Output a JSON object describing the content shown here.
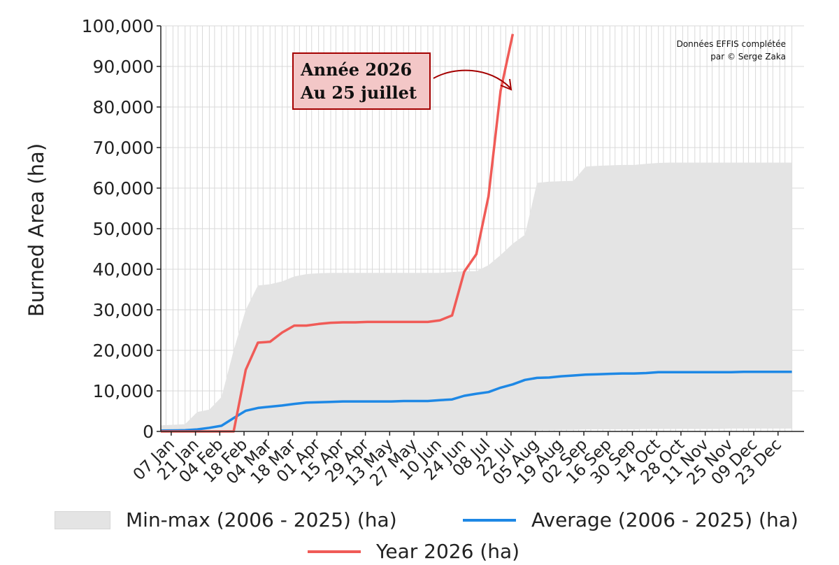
{
  "chart_data": {
    "type": "area",
    "ylabel": "Burned Area (ha)",
    "ylim": [
      0,
      100000
    ],
    "yticks": [
      "0",
      "10,000",
      "20,000",
      "30,000",
      "40,000",
      "50,000",
      "60,000",
      "70,000",
      "80,000",
      "90,000",
      "100,000"
    ],
    "ytick_values": [
      0,
      10000,
      20000,
      30000,
      40000,
      50000,
      60000,
      70000,
      80000,
      90000,
      100000
    ],
    "xticks": [
      "07 Jan",
      "21 Jan",
      "04 Feb",
      "18 Feb",
      "04 Mar",
      "18 Mar",
      "01 Apr",
      "15 Apr",
      "29 Apr",
      "13 May",
      "27 May",
      "10 Jun",
      "24 Jun",
      "08 Jul",
      "22 Jul",
      "05 Aug",
      "19 Aug",
      "02 Sep",
      "16 Sep",
      "30 Sep",
      "14 Oct",
      "28 Oct",
      "11 Nov",
      "25 Nov",
      "09 Dec",
      "23 Dec"
    ],
    "x_day_of_year": [
      1,
      4,
      8,
      11,
      15,
      18,
      22,
      25,
      29,
      32,
      36,
      39,
      43,
      46,
      50,
      53,
      57,
      60,
      64,
      67,
      71,
      74,
      78,
      81,
      85,
      88,
      92,
      95,
      99,
      102,
      106,
      109,
      113,
      116,
      120,
      123,
      127,
      130,
      134,
      137,
      141,
      144,
      148,
      151,
      155,
      158,
      162,
      165,
      169,
      172,
      176,
      179,
      183,
      186,
      190,
      193,
      197,
      200,
      204,
      207,
      211,
      214,
      218,
      221,
      225,
      228,
      232,
      235,
      239,
      242,
      246,
      249,
      253,
      256,
      260,
      263,
      267,
      270,
      274,
      277,
      281,
      284,
      288,
      291,
      295,
      298,
      302,
      305,
      309,
      312,
      316,
      319,
      323,
      326,
      330,
      333,
      337,
      340,
      344,
      347,
      351,
      354,
      358,
      361,
      365
    ],
    "grid": true,
    "legend_placement": "bottom",
    "series": [
      {
        "name": "Min-max (2006 - 2025) (ha)",
        "kind": "band",
        "color": "#e4e4e4",
        "x": [
          1,
          15,
          22,
          29,
          36,
          43,
          50,
          57,
          64,
          71,
          78,
          85,
          92,
          99,
          106,
          113,
          120,
          127,
          134,
          141,
          148,
          155,
          162,
          169,
          176,
          183,
          190,
          197,
          204,
          211,
          218,
          225,
          232,
          239,
          246,
          253,
          260,
          267,
          274,
          281,
          288,
          295,
          302,
          309,
          316,
          323,
          330,
          337,
          344,
          351,
          358,
          365
        ],
        "max": [
          1500,
          1800,
          4800,
          5400,
          8500,
          20000,
          30000,
          36000,
          36300,
          37000,
          38200,
          38800,
          39000,
          39100,
          39100,
          39100,
          39100,
          39100,
          39100,
          39100,
          39100,
          39100,
          39100,
          39300,
          39500,
          39500,
          41000,
          43500,
          46300,
          48500,
          61300,
          61600,
          61700,
          61800,
          65300,
          65500,
          65600,
          65700,
          65700,
          66000,
          66200,
          66300,
          66300,
          66300,
          66300,
          66300,
          66300,
          66300,
          66300,
          66300,
          66300,
          66300
        ],
        "min": [
          0,
          0,
          0,
          0,
          0,
          0,
          0,
          0,
          0,
          0,
          0,
          0,
          0,
          0,
          0,
          0,
          0,
          0,
          0,
          0,
          0,
          0,
          0,
          0,
          0,
          0,
          0,
          0,
          0,
          100,
          300,
          300,
          400,
          400,
          500,
          500,
          500,
          500,
          500,
          600,
          600,
          600,
          600,
          600,
          600,
          600,
          700,
          700,
          700,
          700,
          700,
          700
        ]
      },
      {
        "name": "Average (2006 - 2025) (ha)",
        "kind": "line",
        "color": "#1e88e5",
        "x": [
          1,
          15,
          22,
          29,
          36,
          43,
          50,
          57,
          64,
          71,
          78,
          85,
          92,
          99,
          106,
          113,
          120,
          127,
          134,
          141,
          148,
          155,
          162,
          169,
          176,
          183,
          190,
          197,
          204,
          211,
          218,
          225,
          232,
          239,
          246,
          253,
          260,
          267,
          274,
          281,
          288,
          295,
          302,
          309,
          316,
          323,
          330,
          337,
          344,
          351,
          358,
          365
        ],
        "values": [
          200,
          300,
          500,
          900,
          1400,
          3300,
          5100,
          5800,
          6100,
          6400,
          6800,
          7100,
          7200,
          7300,
          7400,
          7400,
          7400,
          7400,
          7400,
          7500,
          7500,
          7500,
          7700,
          7900,
          8800,
          9300,
          9700,
          10800,
          11600,
          12700,
          13200,
          13300,
          13600,
          13800,
          14000,
          14100,
          14200,
          14300,
          14300,
          14400,
          14600,
          14600,
          14600,
          14600,
          14600,
          14600,
          14600,
          14700,
          14700,
          14700,
          14700,
          14700
        ]
      },
      {
        "name": "Year 2026 (ha)",
        "kind": "line",
        "color": "#f05b57",
        "x": [
          1,
          15,
          22,
          29,
          36,
          43,
          50,
          57,
          64,
          71,
          78,
          85,
          92,
          99,
          106,
          113,
          120,
          127,
          134,
          141,
          148,
          155,
          162,
          169,
          176,
          183,
          190,
          197,
          204
        ],
        "values": [
          0,
          0,
          0,
          0,
          0,
          0,
          15200,
          21900,
          22100,
          24400,
          26100,
          26100,
          26500,
          26800,
          26900,
          26900,
          27000,
          27000,
          27000,
          27000,
          27000,
          27000,
          27400,
          28600,
          39400,
          43700,
          58000,
          84000,
          98000
        ]
      }
    ]
  },
  "annotation": {
    "line1": "Année 2026",
    "line2": "Au 25 juillet",
    "color": "#a40000"
  },
  "credit": {
    "line1": "Données EFFIS complétée",
    "line2": "par © Serge Zaka"
  },
  "legend": {
    "minmax": "Min-max (2006 - 2025) (ha)",
    "average": "Average (2006 - 2025) (ha)",
    "year": "Year 2026 (ha)"
  }
}
